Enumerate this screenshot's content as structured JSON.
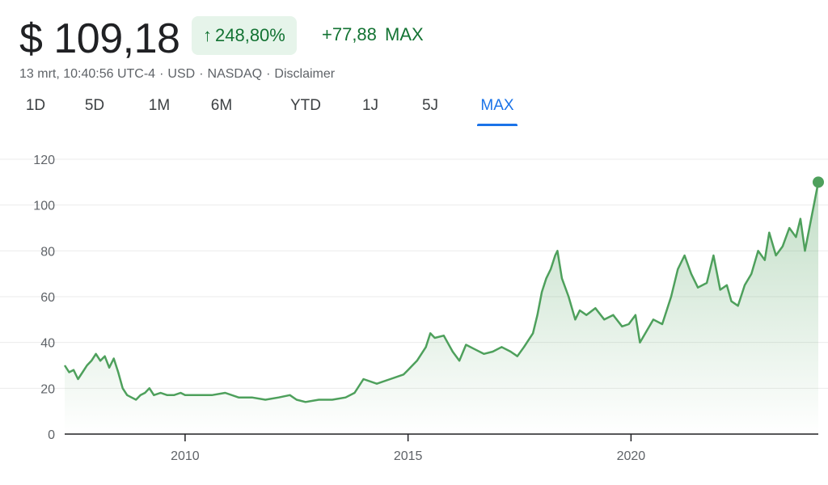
{
  "quote": {
    "price": "$ 109,18",
    "change_pct": "248,80%",
    "change_abs": "+77,88",
    "change_range": "MAX",
    "meta": {
      "datetime": "13 mrt, 10:40:56 UTC-4",
      "currency": "USD",
      "exchange": "NASDAQ",
      "disclaimer": "Disclaimer"
    }
  },
  "tabs": [
    {
      "label": "1D",
      "active": false
    },
    {
      "label": "5D",
      "active": false
    },
    {
      "label": "1M",
      "active": false
    },
    {
      "label": "6M",
      "active": false
    },
    {
      "label": "YTD",
      "active": false
    },
    {
      "label": "1J",
      "active": false
    },
    {
      "label": "5J",
      "active": false
    },
    {
      "label": "MAX",
      "active": true
    }
  ],
  "colors": {
    "line": "#4ea05c",
    "fill_top": "#4ea05c",
    "grid": "#ebebeb",
    "axis": "#202124",
    "tick_text": "#5f6368",
    "positive": "#137333",
    "positive_bg": "#e6f4ea",
    "active_tab": "#1a73e8"
  },
  "icons": {
    "change_arrow": "arrow-up-icon"
  },
  "chart_data": {
    "type": "area",
    "title": "",
    "xlabel": "",
    "ylabel": "",
    "xlim": [
      2007.3,
      2024.2
    ],
    "ylim": [
      0,
      120
    ],
    "yticks": [
      0,
      20,
      40,
      60,
      80,
      100,
      120
    ],
    "xticks": [
      2010,
      2015,
      2020
    ],
    "grid": true,
    "series": [
      {
        "x": [
          2007.3,
          2007.4,
          2007.5,
          2007.6,
          2007.7,
          2007.8,
          2007.9,
          2008.0,
          2008.1,
          2008.2,
          2008.3,
          2008.4,
          2008.5,
          2008.6,
          2008.7,
          2008.8,
          2008.9,
          2009.0,
          2009.1,
          2009.2,
          2009.3,
          2009.45,
          2009.6,
          2009.75,
          2009.9,
          2010.0,
          2010.3,
          2010.6,
          2010.9,
          2011.2,
          2011.5,
          2011.8,
          2012.1,
          2012.35,
          2012.5,
          2012.7,
          2013.0,
          2013.3,
          2013.6,
          2013.8,
          2014.0,
          2014.3,
          2014.6,
          2014.9,
          2015.0,
          2015.2,
          2015.4,
          2015.5,
          2015.6,
          2015.8,
          2016.0,
          2016.15,
          2016.3,
          2016.5,
          2016.7,
          2016.9,
          2017.1,
          2017.3,
          2017.45,
          2017.6,
          2017.8,
          2017.9,
          2018.0,
          2018.1,
          2018.2,
          2018.3,
          2018.35,
          2018.45,
          2018.6,
          2018.75,
          2018.85,
          2019.0,
          2019.2,
          2019.4,
          2019.6,
          2019.8,
          2019.95,
          2020.1,
          2020.2,
          2020.35,
          2020.5,
          2020.7,
          2020.9,
          2021.05,
          2021.2,
          2021.35,
          2021.5,
          2021.7,
          2021.85,
          2022.0,
          2022.15,
          2022.25,
          2022.4,
          2022.55,
          2022.7,
          2022.85,
          2023.0,
          2023.1,
          2023.25,
          2023.4,
          2023.55,
          2023.7,
          2023.8,
          2023.9,
          2024.0,
          2024.1,
          2024.2
        ],
        "y": [
          30,
          27,
          28,
          24,
          27,
          30,
          32,
          35,
          32,
          34,
          29,
          33,
          27,
          20,
          17,
          16,
          15,
          17,
          18,
          20,
          17,
          18,
          17,
          17,
          18,
          17,
          17,
          17,
          18,
          16,
          16,
          15,
          16,
          17,
          15,
          14,
          15,
          15,
          16,
          18,
          24,
          22,
          24,
          26,
          28,
          32,
          38,
          44,
          42,
          43,
          36,
          32,
          39,
          37,
          35,
          36,
          38,
          36,
          34,
          38,
          44,
          52,
          62,
          68,
          72,
          78,
          80,
          68,
          60,
          50,
          54,
          52,
          55,
          50,
          52,
          47,
          48,
          52,
          40,
          45,
          50,
          48,
          60,
          72,
          78,
          70,
          64,
          66,
          78,
          63,
          65,
          58,
          56,
          65,
          70,
          80,
          76,
          88,
          78,
          82,
          90,
          86,
          94,
          80,
          90,
          100,
          110
        ]
      }
    ]
  }
}
